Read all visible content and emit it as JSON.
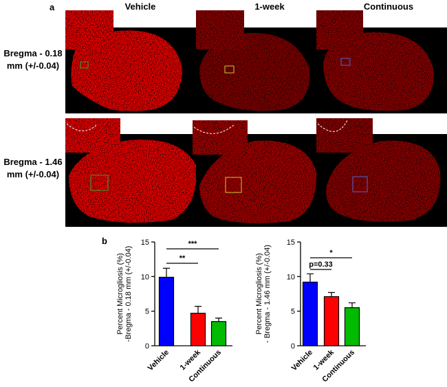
{
  "panel_a": {
    "label": "a",
    "columns": [
      "Vehicle",
      "1-week",
      "Continuous"
    ],
    "rows": [
      [
        "Bregma - 0.18",
        "mm (+/-0.04)"
      ],
      [
        "Bregma - 1.46",
        "mm (+/-0.04)"
      ]
    ]
  },
  "panel_b": {
    "label": "b"
  },
  "chart_data": [
    {
      "type": "bar",
      "y_label": [
        "Percent Microgliosis (%)",
        "-Bregma - 0.18 mm (+/-0.04)"
      ],
      "categories": [
        "Vehicle",
        "1-week",
        "Continuous"
      ],
      "values": [
        9.9,
        4.7,
        3.5
      ],
      "errors": [
        1.3,
        1.0,
        0.5
      ],
      "colors": [
        "#0000ff",
        "#ff0000",
        "#00bb00"
      ],
      "ylim": [
        0,
        15
      ],
      "yticks": [
        0,
        5,
        10,
        15
      ],
      "annotations": [
        "**",
        "***"
      ]
    },
    {
      "type": "bar",
      "y_label": [
        "Percent Microgliosis (%)",
        "- Bregma - 1.46 mm (+/-0.04)"
      ],
      "categories": [
        "Vehicle",
        "1-week",
        "Continuous"
      ],
      "values": [
        9.2,
        7.1,
        5.5
      ],
      "errors": [
        1.2,
        0.6,
        0.7
      ],
      "colors": [
        "#0000ff",
        "#ff0000",
        "#00bb00"
      ],
      "ylim": [
        0,
        15
      ],
      "yticks": [
        0,
        5,
        10,
        15
      ],
      "annotations": [
        "p=0.33",
        "*"
      ]
    }
  ]
}
